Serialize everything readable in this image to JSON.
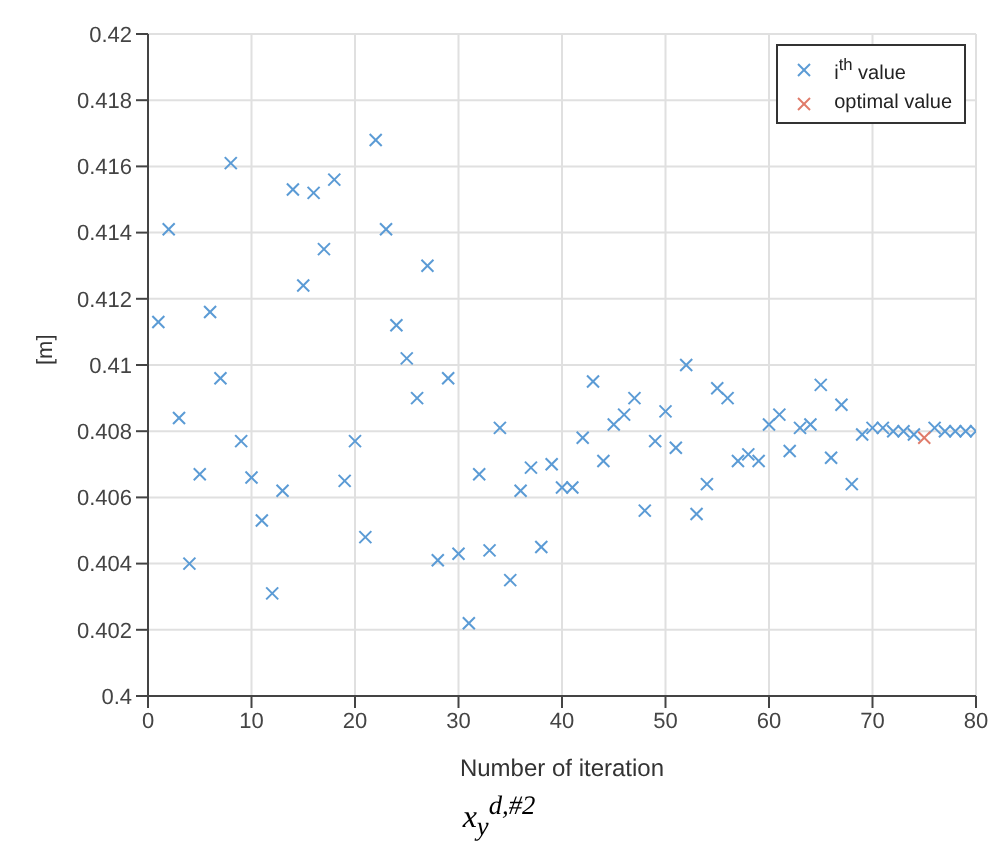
{
  "chart_data": {
    "type": "scatter",
    "xlabel": "Number of iteration",
    "ylabel": "[m]",
    "annotations": [
      "x$_{y}$$^{d,#2}$"
    ],
    "xlim": [
      0,
      80
    ],
    "xticks": [
      0,
      10,
      20,
      30,
      40,
      50,
      60,
      70,
      80
    ],
    "ylim": [
      0.4,
      0.42
    ],
    "yticks": [
      0.4,
      0.402,
      0.404,
      0.406,
      0.408,
      0.41,
      0.412,
      0.414,
      0.416,
      0.418,
      0.42
    ],
    "grid": true,
    "legend": "top right",
    "marker": "cross",
    "series": [
      {
        "name": "i$^{th}$ value",
        "color": "#5b9bd5",
        "x": [
          1,
          2,
          3,
          4,
          5,
          6,
          7,
          8,
          9,
          10,
          11,
          12,
          13,
          14,
          15,
          16,
          17,
          18,
          19,
          20,
          21,
          22,
          23,
          24,
          25,
          26,
          27,
          28,
          29,
          30,
          31,
          32,
          33,
          34,
          35,
          36,
          37,
          38,
          39,
          40,
          41,
          42,
          43,
          44,
          45,
          46,
          47,
          48,
          49,
          50,
          51,
          52,
          53,
          54,
          55,
          56,
          57,
          58,
          59,
          60,
          61,
          62,
          63,
          64,
          65,
          66,
          67,
          68,
          69,
          70,
          71,
          72,
          73,
          74,
          76,
          77,
          78,
          79,
          80
        ],
        "values": [
          0.4113,
          0.4141,
          0.4084,
          0.404,
          0.4067,
          0.4116,
          0.4096,
          0.4161,
          0.4077,
          0.4066,
          0.4053,
          0.4031,
          0.4062,
          0.4153,
          0.4124,
          0.4152,
          0.4135,
          0.4156,
          0.4065,
          0.4077,
          0.4048,
          0.4168,
          0.4141,
          0.4112,
          0.4102,
          0.409,
          0.413,
          0.4041,
          0.4096,
          0.4043,
          0.4022,
          0.4067,
          0.4044,
          0.4081,
          0.4035,
          0.4062,
          0.4069,
          0.4045,
          0.407,
          0.4063,
          0.4063,
          0.4078,
          0.4095,
          0.4071,
          0.4082,
          0.4085,
          0.409,
          0.4056,
          0.4077,
          0.4086,
          0.4075,
          0.41,
          0.4055,
          0.4064,
          0.4093,
          0.409,
          0.4071,
          0.4073,
          0.4071,
          0.4082,
          0.4085,
          0.4074,
          0.4081,
          0.4082,
          0.4094,
          0.4072,
          0.4088,
          0.4064,
          0.4079,
          0.4081,
          0.4081,
          0.408,
          0.408,
          0.4079,
          0.4081,
          0.408,
          0.408,
          0.408,
          0.408
        ]
      },
      {
        "name": "optimal value",
        "color": "#e07b6a",
        "x": [
          75
        ],
        "values": [
          0.4078
        ]
      }
    ]
  }
}
